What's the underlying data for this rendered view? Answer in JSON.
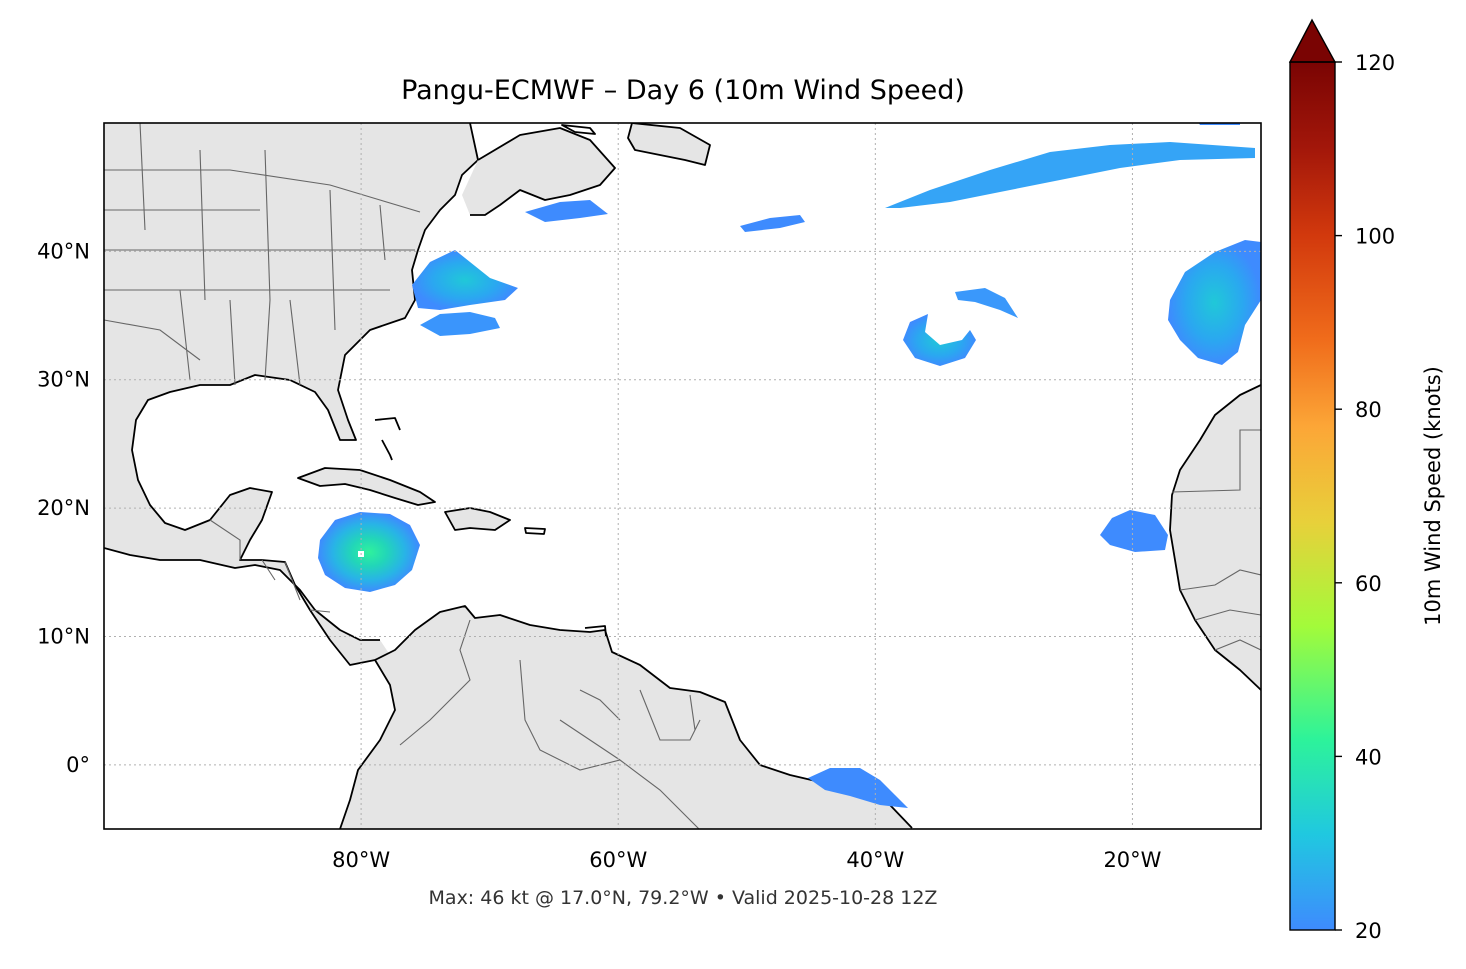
{
  "figure": {
    "title": "Pangu-ECMWF – Day 6 (10m Wind Speed)",
    "footer": "Max: 46 kt @ 17.0°N, 79.2°W • Valid 2025-10-28 12Z"
  },
  "map": {
    "extent": {
      "lon": [
        -100,
        -10
      ],
      "lat": [
        -5,
        50
      ]
    },
    "lon_ticks": [
      {
        "value": -80,
        "label": "80°W"
      },
      {
        "value": -60,
        "label": "60°W"
      },
      {
        "value": -40,
        "label": "40°W"
      },
      {
        "value": -20,
        "label": "20°W"
      }
    ],
    "lat_ticks": [
      {
        "value": 40,
        "label": "40°N"
      },
      {
        "value": 30,
        "label": "30°N"
      },
      {
        "value": 20,
        "label": "20°N"
      },
      {
        "value": 10,
        "label": "10°N"
      },
      {
        "value": 0,
        "label": "0°"
      }
    ],
    "gridlines": true,
    "land_color": "#e5e5e5",
    "coast_color": "#000000",
    "border_color": "#666666"
  },
  "colorbar": {
    "label": "10m Wind Speed (knots)",
    "range": [
      20,
      120
    ],
    "extend": "max",
    "ticks": [
      {
        "value": 20,
        "label": "20"
      },
      {
        "value": 40,
        "label": "40"
      },
      {
        "value": 60,
        "label": "60"
      },
      {
        "value": 80,
        "label": "80"
      },
      {
        "value": 100,
        "label": "100"
      },
      {
        "value": 120,
        "label": "120"
      }
    ],
    "colormap": "turbo",
    "colors": [
      "#3e8bfe",
      "#20c8e0",
      "#2df39a",
      "#a3fb3a",
      "#e8d03a",
      "#fca637",
      "#f06c1b",
      "#d2390d",
      "#a3170a",
      "#7a0403"
    ]
  },
  "wind_features": [
    {
      "name": "caribbean-cyclone",
      "center": [
        -79.2,
        17.0
      ],
      "peak_kt": 46
    },
    {
      "name": "us-east-coast",
      "center": [
        -73.5,
        36.5
      ],
      "peak_kt": 34
    },
    {
      "name": "central-atlantic-hook",
      "center": [
        -35,
        34
      ],
      "peak_kt": 26
    },
    {
      "name": "east-atlantic-low",
      "center": [
        -13.5,
        36.5
      ],
      "peak_kt": 30
    },
    {
      "name": "north-atlantic-band",
      "center": [
        -30,
        46
      ],
      "peak_kt": 25
    },
    {
      "name": "cape-verde",
      "center": [
        -19.5,
        18
      ],
      "peak_kt": 22
    },
    {
      "name": "equatorial-brazil",
      "center": [
        -42,
        -1.5
      ],
      "peak_kt": 22
    }
  ]
}
